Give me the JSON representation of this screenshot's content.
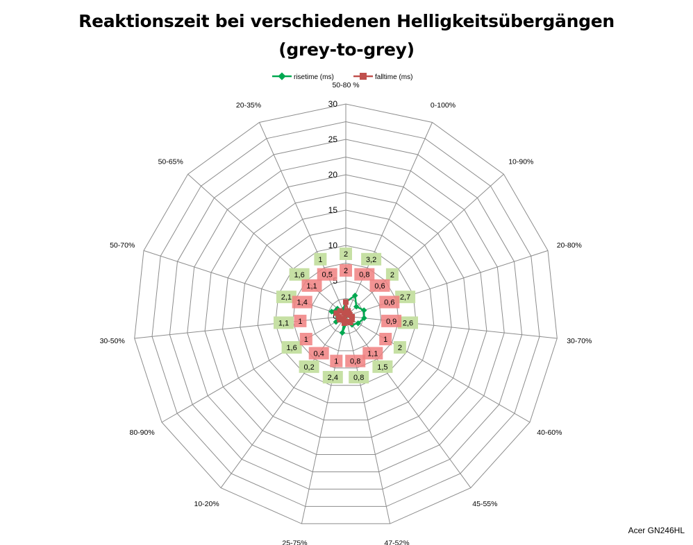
{
  "title_line1": "Reaktionszeit bei verschiedenen Helligkeitsübergängen",
  "title_line2": "(grey-to-grey)",
  "watermark": "Acer GN246HL",
  "colors": {
    "rise_line": "#00a850",
    "fall_line": "#c0504d",
    "rise_label_bg": "#c6e0a4",
    "fall_label_bg": "#f08080",
    "grid": "#8c8c8c"
  },
  "chart_data": {
    "type": "radar",
    "title": "Reaktionszeit bei verschiedenen Helligkeitsübergängen (grey-to-grey)",
    "categories": [
      "50-80 %",
      "0-100%",
      "10-90%",
      "20-80%",
      "30-70%",
      "40-60%",
      "45-55%",
      "47-52%",
      "25-75%",
      "10-20%",
      "80-90%",
      "30-50%",
      "50-70%",
      "50-65%",
      "20-35%"
    ],
    "rlim": [
      0,
      30
    ],
    "ticks": [
      "0",
      "5",
      "10",
      "15",
      "20",
      "25",
      "30"
    ],
    "grid": true,
    "legend_position": "top",
    "series": [
      {
        "name": "risetime (ms)",
        "values": [
          2,
          3.2,
          2,
          2.7,
          2.6,
          2,
          1.5,
          0.8,
          2.4,
          0.2,
          1.6,
          1.1,
          2.1,
          1.6,
          1
        ],
        "labels": [
          "2",
          "3,2",
          "2",
          "2,7",
          "2,6",
          "2",
          "1,5",
          "0,8",
          "2,4",
          "0,2",
          "1,6",
          "1,1",
          "2,1",
          "1,6",
          "1"
        ]
      },
      {
        "name": "falltime (ms)",
        "values": [
          2,
          0.8,
          0.6,
          0.6,
          0.9,
          1,
          1.1,
          0.8,
          1,
          0.4,
          1,
          1,
          1.4,
          1.1,
          0.5
        ],
        "labels": [
          "2",
          "0,8",
          "0,6",
          "0,6",
          "0,9",
          "1",
          "1,1",
          "0,8",
          "1",
          "0,4",
          "1",
          "1",
          "1,4",
          "1,1",
          "0,5"
        ]
      }
    ]
  }
}
